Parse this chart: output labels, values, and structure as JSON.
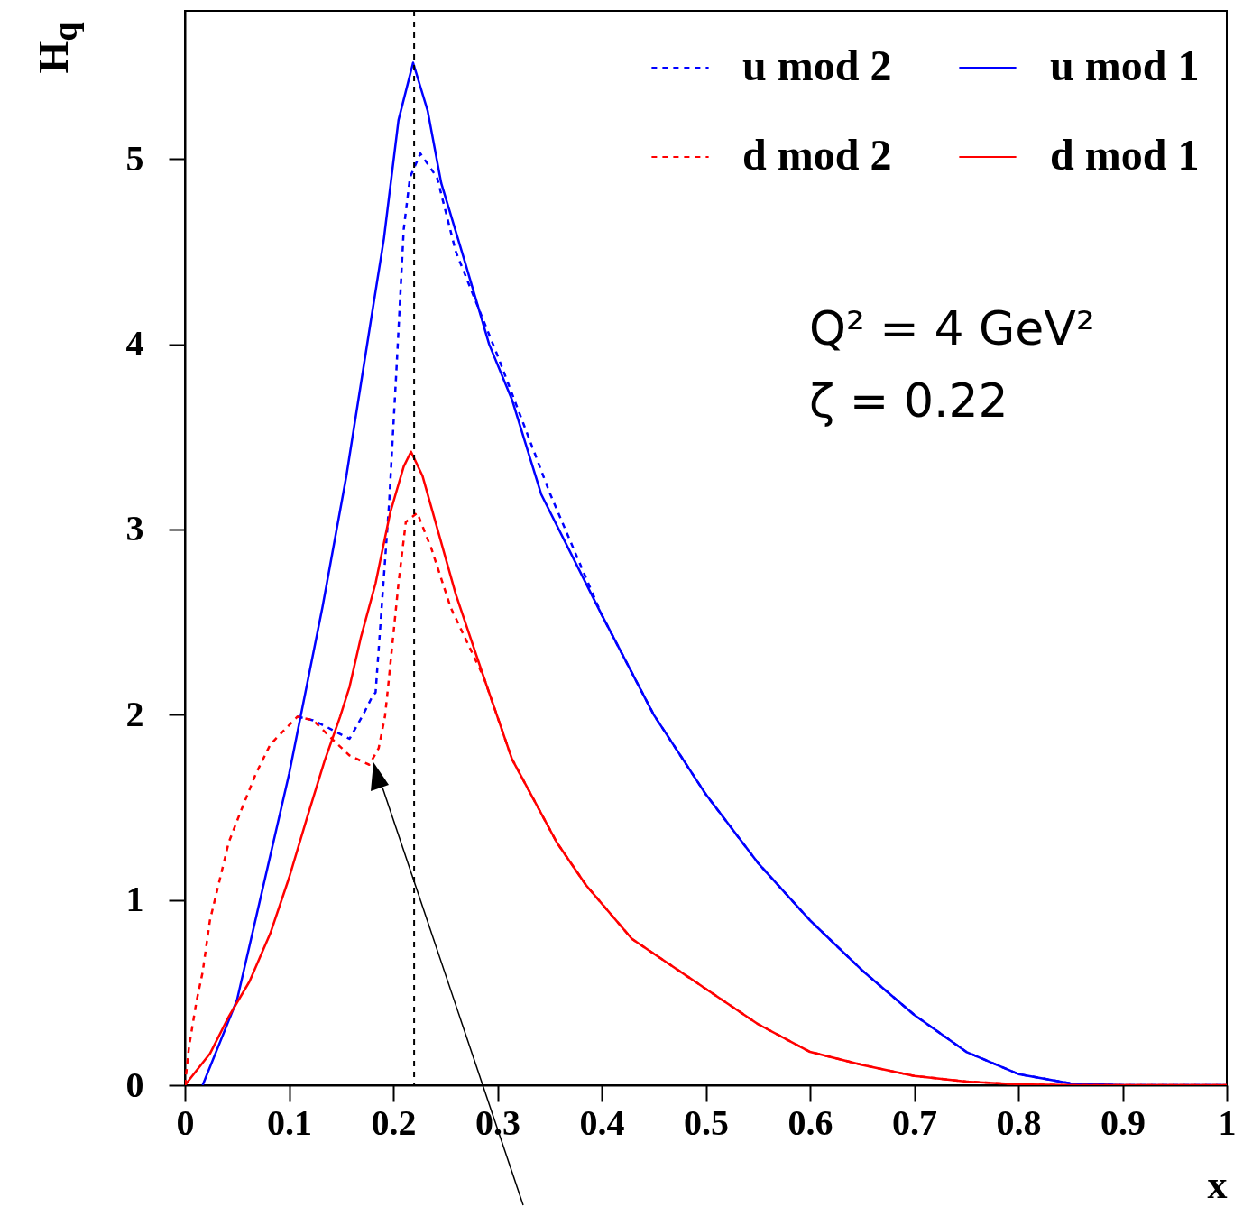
{
  "chart_data": {
    "type": "line",
    "xlabel": "x",
    "ylabel": "H$_{q}$",
    "legend": "top right",
    "grid": false,
    "marker": "none",
    "xlim": [
      0,
      1
    ],
    "ylim": [
      0,
      5.8
    ],
    "xticks": [
      0,
      0.1,
      0.2,
      0.3,
      0.4,
      0.5,
      0.6,
      0.7,
      0.8,
      0.9,
      1
    ],
    "yticks": [
      0,
      1,
      2,
      3,
      4,
      5
    ],
    "ref_lines": [
      {
        "axis": "x",
        "value": 0.22,
        "color": "#000000",
        "line_style": "dashed"
      }
    ],
    "annotations": [
      "Q² = 4 GeV²",
      "ζ = 0.22"
    ],
    "series": [
      {
        "name": "u mod 2",
        "color": "#0000ff",
        "line_style": "dashed",
        "x": [
          0.108,
          0.123,
          0.134,
          0.158,
          0.171,
          0.18,
          0.183,
          0.196,
          0.203,
          0.21,
          0.216,
          0.226,
          0.242,
          0.26,
          0.3,
          0.35,
          0.4,
          0.45,
          0.5,
          0.55,
          0.6,
          0.65,
          0.7,
          0.75,
          0.8,
          0.85,
          0.9,
          1
        ],
        "values": [
          1.99,
          1.97,
          1.94,
          1.87,
          2,
          2.1,
          2.12,
          3.14,
          3.86,
          4.62,
          4.9,
          5.03,
          4.9,
          4.5,
          3.94,
          3.2,
          2.54,
          2,
          1.57,
          1.2,
          0.89,
          0.62,
          0.38,
          0.18,
          0.06,
          0.01,
          0,
          0
        ]
      },
      {
        "name": "u mod 1",
        "color": "#0000ff",
        "line_style": "solid",
        "x": [
          0.017,
          0.05,
          0.1,
          0.132,
          0.155,
          0.178,
          0.191,
          0.205,
          0.219,
          0.233,
          0.246,
          0.269,
          0.292,
          0.314,
          0.342,
          0.4,
          0.45,
          0.5,
          0.55,
          0.6,
          0.65,
          0.7,
          0.75,
          0.8,
          0.85,
          0.9,
          1
        ],
        "values": [
          0,
          0.46,
          1.68,
          2.58,
          3.29,
          4.11,
          4.57,
          5.21,
          5.52,
          5.26,
          4.87,
          4.44,
          4,
          3.7,
          3.19,
          2.54,
          2,
          1.57,
          1.2,
          0.89,
          0.62,
          0.38,
          0.18,
          0.06,
          0.01,
          0,
          0
        ]
      },
      {
        "name": "d mod 2",
        "color": "#ff0000",
        "line_style": "dashed",
        "x": [
          0,
          0.004,
          0.011,
          0.017,
          0.024,
          0.033,
          0.042,
          0.053,
          0.068,
          0.082,
          0.108,
          0.123,
          0.143,
          0.158,
          0.177,
          0.186,
          0.192,
          0.195,
          0.205,
          0.212,
          0.223,
          0.237,
          0.255,
          0.287,
          0.314,
          0.357,
          0.385,
          0.429,
          0.5,
          0.55,
          0.6,
          0.65,
          0.7,
          0.75,
          0.8,
          0.85,
          1
        ],
        "values": [
          0,
          0.21,
          0.45,
          0.61,
          0.89,
          1.1,
          1.31,
          1.47,
          1.68,
          1.84,
          1.99,
          1.97,
          1.86,
          1.78,
          1.73,
          1.82,
          1.99,
          2.15,
          2.71,
          3.04,
          3.09,
          2.89,
          2.58,
          2.2,
          1.76,
          1.31,
          1.08,
          0.79,
          0.52,
          0.33,
          0.18,
          0.11,
          0.05,
          0.02,
          0.005,
          0,
          0
        ]
      },
      {
        "name": "d mod 1",
        "color": "#ff0000",
        "line_style": "solid",
        "x": [
          0,
          0.024,
          0.042,
          0.062,
          0.082,
          0.1,
          0.117,
          0.134,
          0.149,
          0.158,
          0.169,
          0.183,
          0.197,
          0.21,
          0.217,
          0.228,
          0.242,
          0.26,
          0.287,
          0.314,
          0.357,
          0.385,
          0.429,
          0.5,
          0.55,
          0.6,
          0.65,
          0.7,
          0.75,
          0.8,
          0.85,
          1
        ],
        "values": [
          0,
          0.17,
          0.37,
          0.56,
          0.82,
          1.12,
          1.44,
          1.75,
          1.99,
          2.15,
          2.42,
          2.71,
          3.09,
          3.34,
          3.42,
          3.29,
          3.01,
          2.65,
          2.2,
          1.76,
          1.31,
          1.08,
          0.79,
          0.52,
          0.33,
          0.18,
          0.11,
          0.05,
          0.02,
          0.005,
          0,
          0
        ]
      }
    ]
  }
}
